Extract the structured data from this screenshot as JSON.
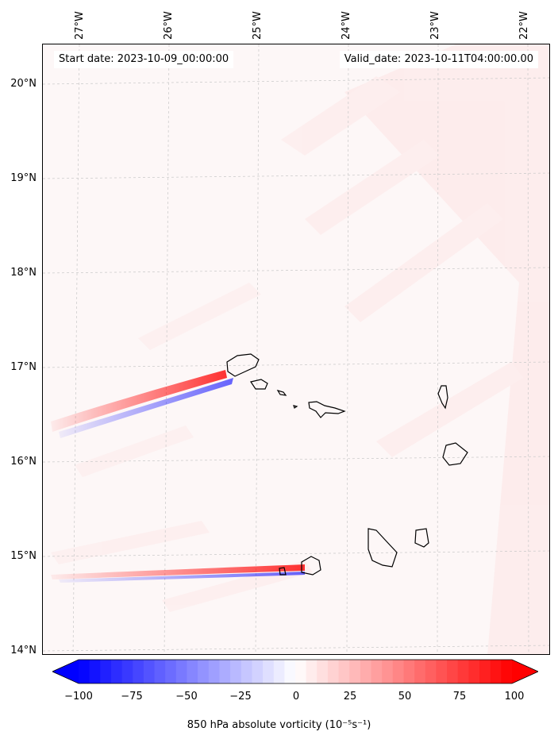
{
  "map": {
    "header": {
      "start_date": "Start date: 2023-10-09_00:00:00",
      "valid_date": "Valid_date: 2023-10-11T04:00:00.00"
    },
    "lat_labels": [
      "20°N",
      "19°N",
      "18°N",
      "17°N",
      "16°N",
      "15°N",
      "14°N"
    ],
    "lon_labels": [
      "27°W",
      "26°W",
      "25°W",
      "24°W",
      "23°W",
      "22°W"
    ],
    "extent": {
      "lon_min": -27.35,
      "lon_max": -21.75,
      "lat_min": 13.95,
      "lat_max": 20.45
    }
  },
  "colorbar": {
    "ticks": [
      "−100",
      "−75",
      "−50",
      "−25",
      "0",
      "25",
      "50",
      "75",
      "100"
    ],
    "min": -100,
    "max": 100,
    "label": "850 hPa absolute vorticity (10⁻⁵s⁻¹)",
    "colors": {
      "negative": "#0000ff",
      "zero": "#ffffff",
      "positive": "#ff0000"
    }
  }
}
